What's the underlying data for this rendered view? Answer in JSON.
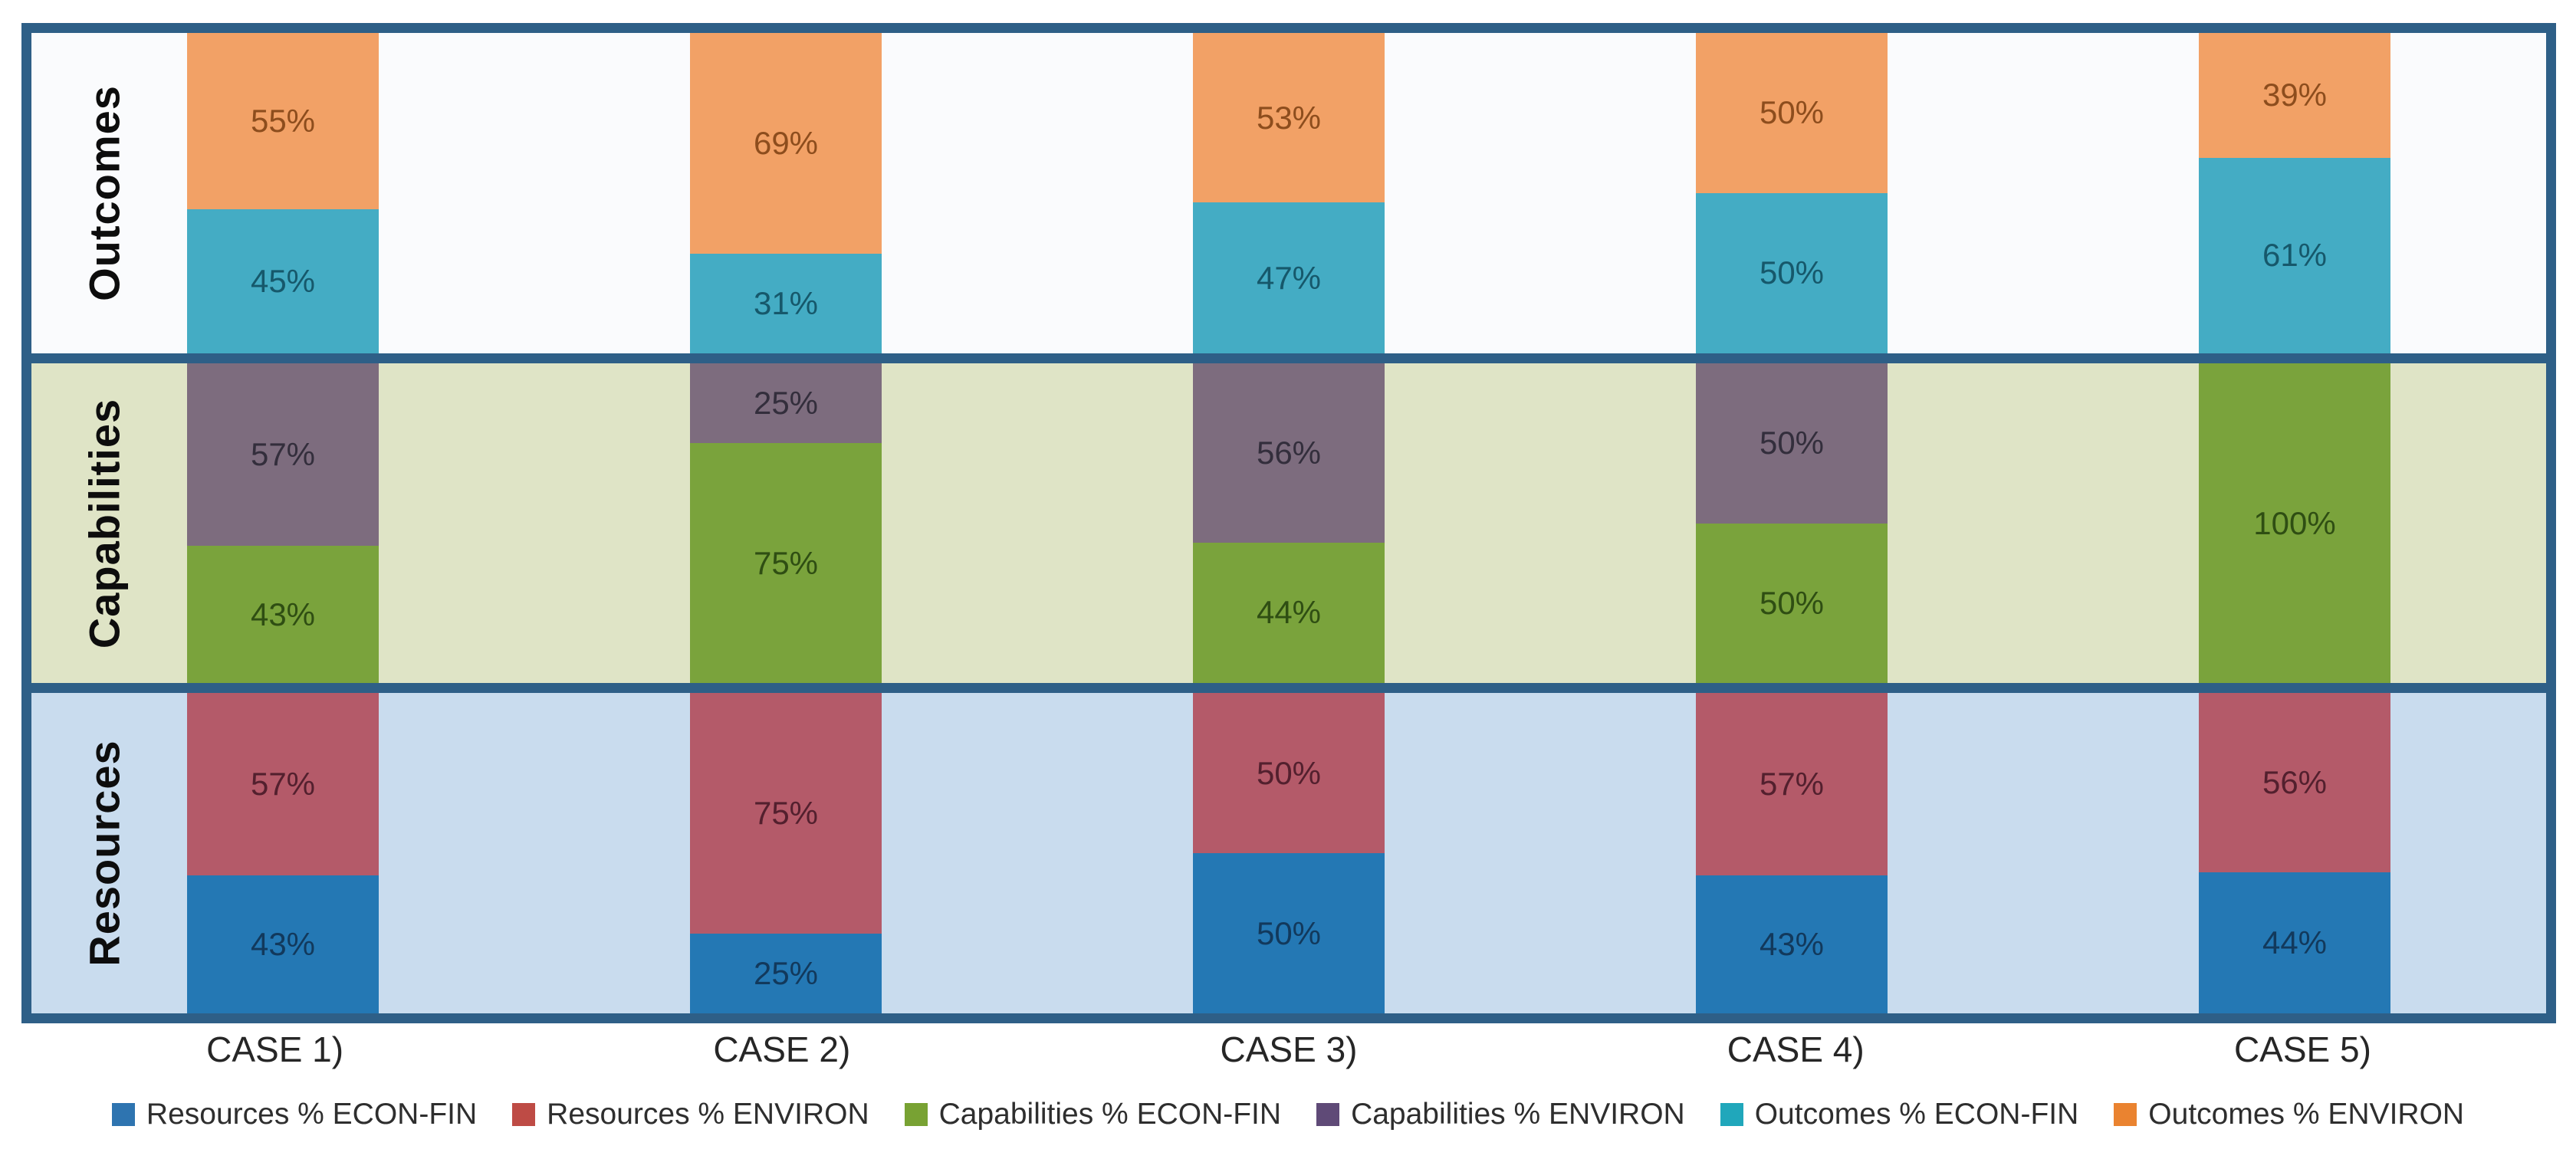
{
  "chart_data": {
    "type": "bar",
    "stacked": true,
    "normalized_percent": true,
    "orientation": "vertical",
    "grid": false,
    "legend_position": "bottom",
    "frame_color": "#2E5F87",
    "axis_line_color": "#8A8A8A",
    "categories": [
      "CASE 1)",
      "CASE 2)",
      "CASE 3)",
      "CASE 4)",
      "CASE 5)"
    ],
    "bands": [
      {
        "label": "Outcomes",
        "background": "#FAFBFD",
        "top_series": {
          "name": "Outcomes % ENVIRON",
          "color": "#F2A166",
          "label_color": "#8D4D1D",
          "values": [
            55,
            69,
            53,
            50,
            39
          ]
        },
        "bottom_series": {
          "name": "Outcomes % ECON-FIN",
          "color": "#44ACC4",
          "label_color": "#16586B",
          "values": [
            45,
            31,
            47,
            50,
            61
          ]
        }
      },
      {
        "label": "Capabilities",
        "background": "#DFE4C6",
        "top_series": {
          "name": "Capabilities % ENVIRON",
          "color": "#7D6C7E",
          "label_color": "#332E3C",
          "values": [
            57,
            25,
            56,
            50,
            0
          ]
        },
        "bottom_series": {
          "name": "Capabilities % ECON-FIN",
          "color": "#7AA33C",
          "label_color": "#2F4E13",
          "values": [
            43,
            75,
            44,
            50,
            100
          ]
        }
      },
      {
        "label": "Resources",
        "background": "#C9DCEE",
        "top_series": {
          "name": "Resources % ENVIRON",
          "color": "#B45A69",
          "label_color": "#53202E",
          "values": [
            57,
            75,
            50,
            57,
            56
          ]
        },
        "bottom_series": {
          "name": "Resources % ECON-FIN",
          "color": "#2478B4",
          "label_color": "#12395C",
          "values": [
            43,
            25,
            50,
            43,
            44
          ]
        }
      }
    ],
    "legend": [
      {
        "label": "Resources % ECON-FIN",
        "color": "#2E74B0"
      },
      {
        "label": "Resources % ENVIRON",
        "color": "#BE4B45"
      },
      {
        "label": "Capabilities % ECON-FIN",
        "color": "#78A233"
      },
      {
        "label": "Capabilities % ENVIRON",
        "color": "#5F4A77"
      },
      {
        "label": "Outcomes % ECON-FIN",
        "color": "#20A7BB"
      },
      {
        "label": "Outcomes % ENVIRON",
        "color": "#EA8330"
      }
    ]
  }
}
